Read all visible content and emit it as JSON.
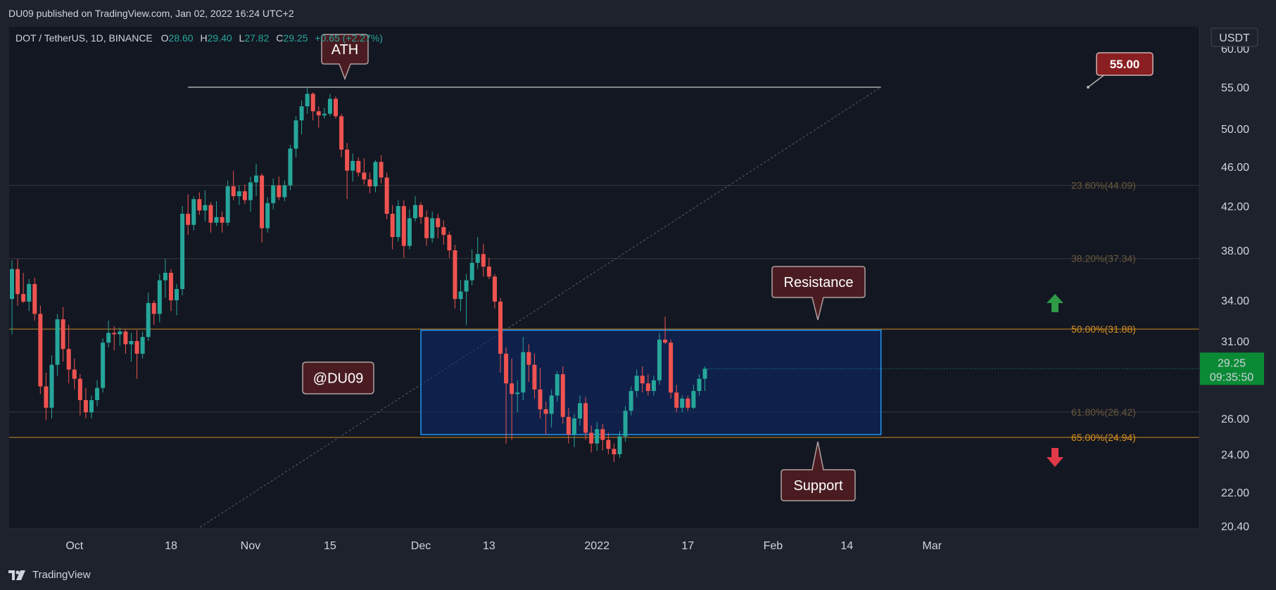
{
  "header": {
    "published_text": "DU09 published on TradingView.com, Jan 02, 2022 16:24 UTC+2"
  },
  "footer": {
    "brand": "TradingView"
  },
  "colors": {
    "up": "#26a69a",
    "down": "#ef5350",
    "fib_orange": "#f5a623",
    "zone_border": "#2196f3",
    "zone_fill": "#0d2a6b",
    "callout_bg": "#4a1c22",
    "callout_border": "#b0a0a0",
    "price_badge": "#0a8a35"
  },
  "chart_data": {
    "type": "candlestick",
    "symbol": "DOT / TetherUS, 1D, BINANCE",
    "ohlc_legend": {
      "O_label": "O",
      "O": "28.60",
      "H_label": "H",
      "H": "29.40",
      "L_label": "L",
      "L": "27.82",
      "C_label": "C",
      "C": "29.25",
      "change": "+0.65 (+2.27%)"
    },
    "currency": "USDT",
    "y_ticks": [
      "60.00",
      "55.00",
      "50.00",
      "46.00",
      "42.00",
      "38.00",
      "34.00",
      "31.00",
      "26.00",
      "24.00",
      "22.00",
      "20.40"
    ],
    "x_ticks": [
      "Oct",
      "18",
      "Nov",
      "15",
      "Dec",
      "13",
      "2022",
      "17",
      "Feb",
      "14",
      "Mar"
    ],
    "x_tick_dates": [
      "2021-10-01",
      "2021-10-18",
      "2021-11-01",
      "2021-11-15",
      "2021-12-01",
      "2021-12-13",
      "2022-01-01",
      "2022-01-17",
      "2022-02-01",
      "2022-02-14",
      "2022-03-01"
    ],
    "last_price": "29.25",
    "countdown": "09:35:50",
    "ath_price_label": "55.00",
    "fib_levels": [
      {
        "label": "23.60%(44.09)",
        "value": 44.09
      },
      {
        "label": "38.20%(37.34)",
        "value": 37.34
      },
      {
        "label": "50.00%(31.88)",
        "value": 31.88
      },
      {
        "label": "61.80%(26.42)",
        "value": 26.42
      },
      {
        "label": "65.00%(24.94)",
        "value": 24.94
      }
    ],
    "zone": {
      "top": 31.8,
      "bottom": 25.1,
      "start_date": "2021-12-01",
      "end_date": "2022-02-20"
    },
    "ath_line": {
      "value": 55.0,
      "start_date": "2021-10-21",
      "end_date": "2022-02-20"
    },
    "diagonal_line": {
      "start_date": "2021-10-20",
      "start_value": 19.8,
      "end_date": "2022-02-20",
      "end_value": 55.0
    },
    "annotations": {
      "ath": "ATH",
      "resistance": "Resistance",
      "support": "Support",
      "watermark": "@DU09"
    },
    "candles": [
      {
        "date": "2021-09-20",
        "o": 34.1,
        "h": 37.2,
        "l": 31.5,
        "c": 36.5
      },
      {
        "date": "2021-09-21",
        "o": 36.5,
        "h": 37.3,
        "l": 33.6,
        "c": 34.5
      },
      {
        "date": "2021-09-22",
        "o": 34.5,
        "h": 36.2,
        "l": 33.8,
        "c": 33.9
      },
      {
        "date": "2021-09-23",
        "o": 33.9,
        "h": 35.7,
        "l": 33.2,
        "c": 35.3
      },
      {
        "date": "2021-09-24",
        "o": 35.3,
        "h": 35.8,
        "l": 32.5,
        "c": 33.0
      },
      {
        "date": "2021-09-25",
        "o": 33.0,
        "h": 33.6,
        "l": 27.6,
        "c": 28.1
      },
      {
        "date": "2021-09-26",
        "o": 28.1,
        "h": 29.0,
        "l": 25.9,
        "c": 26.7
      },
      {
        "date": "2021-09-27",
        "o": 26.7,
        "h": 30.1,
        "l": 26.0,
        "c": 29.5
      },
      {
        "date": "2021-09-28",
        "o": 29.5,
        "h": 33.0,
        "l": 28.8,
        "c": 32.6
      },
      {
        "date": "2021-09-29",
        "o": 32.6,
        "h": 33.5,
        "l": 29.7,
        "c": 30.5
      },
      {
        "date": "2021-09-30",
        "o": 30.5,
        "h": 32.2,
        "l": 28.3,
        "c": 29.2
      },
      {
        "date": "2021-10-01",
        "o": 29.2,
        "h": 29.9,
        "l": 27.9,
        "c": 28.6
      },
      {
        "date": "2021-10-02",
        "o": 28.6,
        "h": 28.9,
        "l": 26.2,
        "c": 27.2
      },
      {
        "date": "2021-10-03",
        "o": 27.2,
        "h": 28.0,
        "l": 26.0,
        "c": 26.4
      },
      {
        "date": "2021-10-04",
        "o": 26.4,
        "h": 27.5,
        "l": 26.0,
        "c": 27.2
      },
      {
        "date": "2021-10-05",
        "o": 27.2,
        "h": 28.5,
        "l": 26.8,
        "c": 28.0
      },
      {
        "date": "2021-10-06",
        "o": 28.0,
        "h": 31.2,
        "l": 27.7,
        "c": 30.9
      },
      {
        "date": "2021-10-07",
        "o": 30.9,
        "h": 32.5,
        "l": 30.6,
        "c": 31.6
      },
      {
        "date": "2021-10-08",
        "o": 31.6,
        "h": 32.1,
        "l": 30.4,
        "c": 31.5
      },
      {
        "date": "2021-10-09",
        "o": 31.5,
        "h": 32.0,
        "l": 30.7,
        "c": 31.7
      },
      {
        "date": "2021-10-10",
        "o": 31.7,
        "h": 31.9,
        "l": 30.2,
        "c": 30.8
      },
      {
        "date": "2021-10-11",
        "o": 30.8,
        "h": 31.6,
        "l": 29.7,
        "c": 31.0
      },
      {
        "date": "2021-10-12",
        "o": 31.0,
        "h": 31.8,
        "l": 28.6,
        "c": 30.2
      },
      {
        "date": "2021-10-13",
        "o": 30.2,
        "h": 31.7,
        "l": 29.9,
        "c": 31.3
      },
      {
        "date": "2021-10-14",
        "o": 31.3,
        "h": 34.6,
        "l": 31.0,
        "c": 33.8
      },
      {
        "date": "2021-10-15",
        "o": 33.8,
        "h": 34.0,
        "l": 32.2,
        "c": 33.0
      },
      {
        "date": "2021-10-16",
        "o": 33.0,
        "h": 36.1,
        "l": 32.4,
        "c": 35.6
      },
      {
        "date": "2021-10-17",
        "o": 35.6,
        "h": 37.3,
        "l": 34.2,
        "c": 36.2
      },
      {
        "date": "2021-10-18",
        "o": 36.2,
        "h": 36.5,
        "l": 33.2,
        "c": 34.0
      },
      {
        "date": "2021-10-19",
        "o": 34.0,
        "h": 35.3,
        "l": 32.9,
        "c": 34.9
      },
      {
        "date": "2021-10-20",
        "o": 34.9,
        "h": 42.0,
        "l": 34.4,
        "c": 41.3
      },
      {
        "date": "2021-10-21",
        "o": 41.3,
        "h": 43.2,
        "l": 39.4,
        "c": 40.3
      },
      {
        "date": "2021-10-22",
        "o": 40.3,
        "h": 43.0,
        "l": 39.8,
        "c": 42.7
      },
      {
        "date": "2021-10-23",
        "o": 42.7,
        "h": 43.4,
        "l": 41.2,
        "c": 41.6
      },
      {
        "date": "2021-10-24",
        "o": 41.6,
        "h": 43.6,
        "l": 40.6,
        "c": 42.1
      },
      {
        "date": "2021-10-25",
        "o": 42.1,
        "h": 42.4,
        "l": 39.6,
        "c": 40.5
      },
      {
        "date": "2021-10-26",
        "o": 40.5,
        "h": 42.5,
        "l": 40.2,
        "c": 41.0
      },
      {
        "date": "2021-10-27",
        "o": 41.0,
        "h": 41.5,
        "l": 39.6,
        "c": 40.5
      },
      {
        "date": "2021-10-28",
        "o": 40.5,
        "h": 44.6,
        "l": 40.2,
        "c": 44.0
      },
      {
        "date": "2021-10-29",
        "o": 44.0,
        "h": 45.6,
        "l": 42.6,
        "c": 43.0
      },
      {
        "date": "2021-10-30",
        "o": 43.0,
        "h": 44.1,
        "l": 42.1,
        "c": 43.5
      },
      {
        "date": "2021-10-31",
        "o": 43.5,
        "h": 44.2,
        "l": 42.2,
        "c": 42.6
      },
      {
        "date": "2021-11-01",
        "o": 42.6,
        "h": 45.0,
        "l": 41.5,
        "c": 44.4
      },
      {
        "date": "2021-11-02",
        "o": 44.4,
        "h": 46.3,
        "l": 43.0,
        "c": 45.1
      },
      {
        "date": "2021-11-03",
        "o": 45.1,
        "h": 45.3,
        "l": 38.7,
        "c": 40.0
      },
      {
        "date": "2021-11-04",
        "o": 40.0,
        "h": 42.9,
        "l": 39.6,
        "c": 42.3
      },
      {
        "date": "2021-11-05",
        "o": 42.3,
        "h": 44.8,
        "l": 41.7,
        "c": 44.1
      },
      {
        "date": "2021-11-06",
        "o": 44.1,
        "h": 45.0,
        "l": 42.6,
        "c": 42.9
      },
      {
        "date": "2021-11-07",
        "o": 42.9,
        "h": 44.6,
        "l": 42.5,
        "c": 44.1
      },
      {
        "date": "2021-11-08",
        "o": 44.1,
        "h": 48.3,
        "l": 43.6,
        "c": 47.9
      },
      {
        "date": "2021-11-09",
        "o": 47.9,
        "h": 51.5,
        "l": 47.0,
        "c": 51.0
      },
      {
        "date": "2021-11-10",
        "o": 51.0,
        "h": 53.4,
        "l": 49.4,
        "c": 52.7
      },
      {
        "date": "2021-11-11",
        "o": 52.7,
        "h": 54.9,
        "l": 51.8,
        "c": 54.2
      },
      {
        "date": "2021-11-12",
        "o": 54.2,
        "h": 54.4,
        "l": 51.0,
        "c": 52.1
      },
      {
        "date": "2021-11-13",
        "o": 52.1,
        "h": 52.7,
        "l": 50.1,
        "c": 51.6
      },
      {
        "date": "2021-11-14",
        "o": 51.6,
        "h": 52.5,
        "l": 51.2,
        "c": 51.8
      },
      {
        "date": "2021-11-15",
        "o": 51.8,
        "h": 54.2,
        "l": 51.5,
        "c": 53.6
      },
      {
        "date": "2021-11-16",
        "o": 53.6,
        "h": 53.9,
        "l": 51.2,
        "c": 51.5
      },
      {
        "date": "2021-11-17",
        "o": 51.5,
        "h": 51.8,
        "l": 47.0,
        "c": 47.8
      },
      {
        "date": "2021-11-18",
        "o": 47.8,
        "h": 48.5,
        "l": 42.7,
        "c": 45.6
      },
      {
        "date": "2021-11-19",
        "o": 45.6,
        "h": 47.4,
        "l": 44.5,
        "c": 46.6
      },
      {
        "date": "2021-11-20",
        "o": 46.6,
        "h": 47.0,
        "l": 45.0,
        "c": 45.4
      },
      {
        "date": "2021-11-21",
        "o": 45.4,
        "h": 46.9,
        "l": 44.2,
        "c": 44.7
      },
      {
        "date": "2021-11-22",
        "o": 44.7,
        "h": 45.4,
        "l": 43.3,
        "c": 44.0
      },
      {
        "date": "2021-11-23",
        "o": 44.0,
        "h": 46.7,
        "l": 43.4,
        "c": 46.5
      },
      {
        "date": "2021-11-24",
        "o": 46.5,
        "h": 47.2,
        "l": 44.3,
        "c": 44.9
      },
      {
        "date": "2021-11-25",
        "o": 44.9,
        "h": 45.4,
        "l": 40.8,
        "c": 41.3
      },
      {
        "date": "2021-11-26",
        "o": 41.3,
        "h": 42.1,
        "l": 38.1,
        "c": 39.2
      },
      {
        "date": "2021-11-27",
        "o": 39.2,
        "h": 42.6,
        "l": 38.8,
        "c": 42.0
      },
      {
        "date": "2021-11-28",
        "o": 42.0,
        "h": 42.6,
        "l": 37.4,
        "c": 38.4
      },
      {
        "date": "2021-11-29",
        "o": 38.4,
        "h": 41.7,
        "l": 38.1,
        "c": 40.9
      },
      {
        "date": "2021-11-30",
        "o": 40.9,
        "h": 43.0,
        "l": 40.6,
        "c": 42.1
      },
      {
        "date": "2021-12-01",
        "o": 42.1,
        "h": 42.4,
        "l": 40.4,
        "c": 41.0
      },
      {
        "date": "2021-12-02",
        "o": 41.0,
        "h": 41.6,
        "l": 38.4,
        "c": 39.1
      },
      {
        "date": "2021-12-03",
        "o": 39.1,
        "h": 41.5,
        "l": 38.7,
        "c": 40.9
      },
      {
        "date": "2021-12-04",
        "o": 40.9,
        "h": 41.3,
        "l": 39.1,
        "c": 40.1
      },
      {
        "date": "2021-12-05",
        "o": 40.1,
        "h": 40.7,
        "l": 38.5,
        "c": 39.4
      },
      {
        "date": "2021-12-06",
        "o": 39.4,
        "h": 39.7,
        "l": 37.4,
        "c": 38.0
      },
      {
        "date": "2021-12-07",
        "o": 38.0,
        "h": 38.5,
        "l": 33.4,
        "c": 34.1
      },
      {
        "date": "2021-12-08",
        "o": 34.1,
        "h": 35.6,
        "l": 33.2,
        "c": 34.7
      },
      {
        "date": "2021-12-09",
        "o": 34.7,
        "h": 36.1,
        "l": 32.2,
        "c": 35.6
      },
      {
        "date": "2021-12-10",
        "o": 35.6,
        "h": 38.1,
        "l": 35.2,
        "c": 37.0
      },
      {
        "date": "2021-12-11",
        "o": 37.0,
        "h": 39.2,
        "l": 36.5,
        "c": 37.7
      },
      {
        "date": "2021-12-12",
        "o": 37.7,
        "h": 38.6,
        "l": 35.9,
        "c": 36.7
      },
      {
        "date": "2021-12-13",
        "o": 36.7,
        "h": 37.4,
        "l": 35.7,
        "c": 35.9
      },
      {
        "date": "2021-12-14",
        "o": 35.9,
        "h": 36.1,
        "l": 33.4,
        "c": 33.9
      },
      {
        "date": "2021-12-15",
        "o": 33.9,
        "h": 34.2,
        "l": 29.0,
        "c": 30.2
      },
      {
        "date": "2021-12-16",
        "o": 30.2,
        "h": 30.6,
        "l": 24.6,
        "c": 28.3
      },
      {
        "date": "2021-12-17",
        "o": 28.3,
        "h": 29.9,
        "l": 24.8,
        "c": 27.6
      },
      {
        "date": "2021-12-18",
        "o": 27.6,
        "h": 28.5,
        "l": 26.4,
        "c": 27.7
      },
      {
        "date": "2021-12-19",
        "o": 27.7,
        "h": 31.3,
        "l": 27.2,
        "c": 30.3
      },
      {
        "date": "2021-12-20",
        "o": 30.3,
        "h": 30.8,
        "l": 28.4,
        "c": 29.5
      },
      {
        "date": "2021-12-21",
        "o": 29.5,
        "h": 30.2,
        "l": 27.3,
        "c": 27.9
      },
      {
        "date": "2021-12-22",
        "o": 27.9,
        "h": 29.3,
        "l": 26.0,
        "c": 26.6
      },
      {
        "date": "2021-12-23",
        "o": 26.6,
        "h": 27.1,
        "l": 25.1,
        "c": 26.3
      },
      {
        "date": "2021-12-24",
        "o": 26.3,
        "h": 27.9,
        "l": 25.5,
        "c": 27.5
      },
      {
        "date": "2021-12-25",
        "o": 27.5,
        "h": 29.1,
        "l": 27.1,
        "c": 28.9
      },
      {
        "date": "2021-12-26",
        "o": 28.9,
        "h": 29.4,
        "l": 25.7,
        "c": 26.1
      },
      {
        "date": "2021-12-27",
        "o": 26.1,
        "h": 26.7,
        "l": 24.6,
        "c": 25.1
      },
      {
        "date": "2021-12-28",
        "o": 25.1,
        "h": 26.3,
        "l": 24.4,
        "c": 26.0
      },
      {
        "date": "2021-12-29",
        "o": 26.0,
        "h": 27.5,
        "l": 25.6,
        "c": 27.0
      },
      {
        "date": "2021-12-30",
        "o": 27.0,
        "h": 27.4,
        "l": 24.8,
        "c": 25.2
      },
      {
        "date": "2021-12-31",
        "o": 25.2,
        "h": 25.6,
        "l": 24.1,
        "c": 24.6
      },
      {
        "date": "2022-01-01",
        "o": 24.6,
        "h": 25.8,
        "l": 24.2,
        "c": 25.4
      },
      {
        "date": "2022-01-02",
        "o": 25.4,
        "h": 25.7,
        "l": 24.2,
        "c": 24.8
      },
      {
        "date": "2022-01-03",
        "o": 24.8,
        "h": 25.2,
        "l": 24.0,
        "c": 24.3
      },
      {
        "date": "2022-01-04",
        "o": 24.3,
        "h": 24.6,
        "l": 23.6,
        "c": 24.0
      },
      {
        "date": "2022-01-05",
        "o": 24.0,
        "h": 25.3,
        "l": 23.8,
        "c": 25.0
      },
      {
        "date": "2022-01-06",
        "o": 25.0,
        "h": 26.8,
        "l": 24.7,
        "c": 26.5
      },
      {
        "date": "2022-01-07",
        "o": 26.5,
        "h": 28.1,
        "l": 26.2,
        "c": 27.8
      },
      {
        "date": "2022-01-08",
        "o": 27.8,
        "h": 29.2,
        "l": 27.4,
        "c": 28.8
      },
      {
        "date": "2022-01-09",
        "o": 28.8,
        "h": 29.4,
        "l": 27.7,
        "c": 28.3
      },
      {
        "date": "2022-01-10",
        "o": 28.3,
        "h": 28.9,
        "l": 27.5,
        "c": 27.8
      },
      {
        "date": "2022-01-11",
        "o": 27.8,
        "h": 28.8,
        "l": 27.5,
        "c": 28.5
      },
      {
        "date": "2022-01-12",
        "o": 28.5,
        "h": 31.6,
        "l": 28.2,
        "c": 31.1
      },
      {
        "date": "2022-01-13",
        "o": 31.1,
        "h": 32.8,
        "l": 30.8,
        "c": 30.9
      },
      {
        "date": "2022-01-14",
        "o": 30.9,
        "h": 31.1,
        "l": 27.3,
        "c": 27.7
      },
      {
        "date": "2022-01-15",
        "o": 27.7,
        "h": 28.2,
        "l": 26.4,
        "c": 26.7
      },
      {
        "date": "2022-01-16",
        "o": 26.7,
        "h": 27.5,
        "l": 26.4,
        "c": 27.3
      },
      {
        "date": "2022-01-17",
        "o": 27.3,
        "h": 27.5,
        "l": 26.5,
        "c": 26.7
      },
      {
        "date": "2022-01-18",
        "o": 26.7,
        "h": 28.2,
        "l": 26.6,
        "c": 27.8
      },
      {
        "date": "2022-01-19",
        "o": 27.8,
        "h": 28.9,
        "l": 27.5,
        "c": 28.6
      },
      {
        "date": "2022-01-20",
        "o": 28.6,
        "h": 29.4,
        "l": 27.8,
        "c": 29.25
      }
    ]
  }
}
